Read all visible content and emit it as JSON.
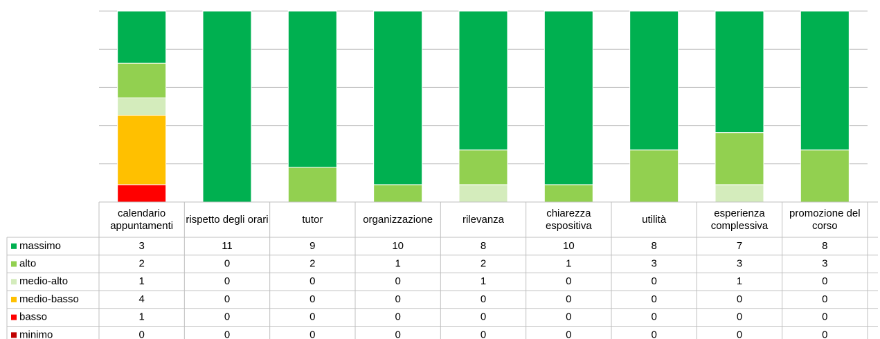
{
  "chart_data": {
    "type": "bar",
    "stacking": "percent",
    "categories": [
      "calendario appuntamenti",
      "rispetto degli orari",
      "tutor",
      "organizzazione",
      "rilevanza",
      "chiarezza espositiva",
      "utilità",
      "esperienza complessiva",
      "promozione del corso"
    ],
    "series": [
      {
        "name": "massimo",
        "color": "#00b050",
        "values": [
          3,
          11,
          9,
          10,
          8,
          10,
          8,
          7,
          8
        ]
      },
      {
        "name": "alto",
        "color": "#92d050",
        "values": [
          2,
          0,
          2,
          1,
          2,
          1,
          3,
          3,
          3
        ]
      },
      {
        "name": "medio-alto",
        "color": "#d4ecbc",
        "values": [
          1,
          0,
          0,
          0,
          1,
          0,
          0,
          1,
          0
        ]
      },
      {
        "name": "medio-basso",
        "color": "#ffc000",
        "values": [
          4,
          0,
          0,
          0,
          0,
          0,
          0,
          0,
          0
        ]
      },
      {
        "name": "basso",
        "color": "#ff0000",
        "values": [
          1,
          0,
          0,
          0,
          0,
          0,
          0,
          0,
          0
        ]
      },
      {
        "name": "minimo",
        "color": "#c00000",
        "values": [
          0,
          0,
          0,
          0,
          0,
          0,
          0,
          0,
          0
        ]
      }
    ],
    "ylim": [
      0,
      100
    ],
    "yticks": [
      0,
      20,
      40,
      60,
      80,
      100
    ],
    "grid": true
  }
}
